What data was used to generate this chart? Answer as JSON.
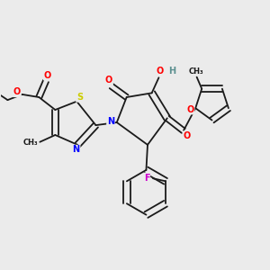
{
  "bg_color": "#ebebeb",
  "line_color": "#1a1a1a",
  "atom_colors": {
    "O": "#ff0000",
    "N": "#0000ff",
    "S": "#cccc00",
    "F": "#cc00cc",
    "H": "#5c9090",
    "C": "#1a1a1a"
  },
  "figsize": [
    3.0,
    3.0
  ],
  "dpi": 100
}
